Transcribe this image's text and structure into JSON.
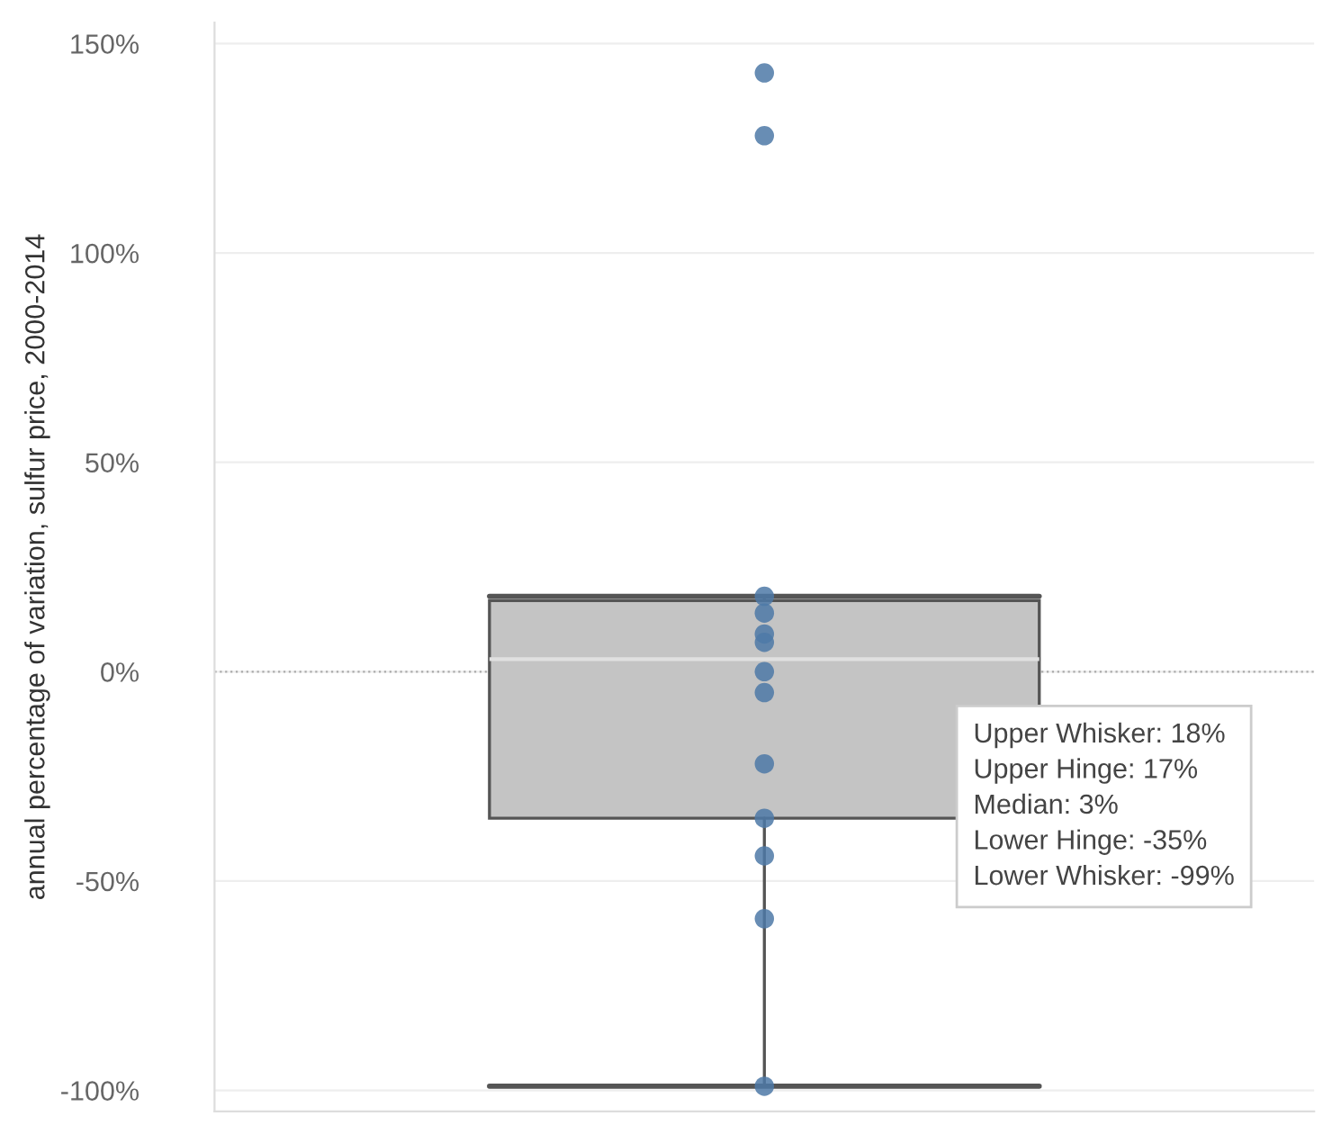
{
  "chart_data": {
    "type": "box",
    "ylabel": "annual percentage of variation, sulfur price, 2000-2014",
    "categories": [
      null
    ],
    "boxes": [
      {
        "low": -99,
        "q1": -35,
        "median": 3,
        "q3": 17,
        "high": 18
      }
    ],
    "series": [
      {
        "type": "scatter",
        "color": "#4e79a7",
        "x": [
          null,
          null,
          null,
          null,
          null,
          null,
          null,
          null,
          null,
          null,
          null,
          null,
          null
        ],
        "values": [
          143,
          128,
          18,
          14,
          9,
          7,
          0,
          -5,
          -22,
          -35,
          -44,
          -59,
          -99
        ]
      }
    ],
    "ylim": [
      -105,
      155
    ],
    "yticks": [
      {
        "value": -100,
        "label": "-100%"
      },
      {
        "value": -50,
        "label": "-50%"
      },
      {
        "value": 0,
        "label": "0%"
      },
      {
        "value": 50,
        "label": "50%"
      },
      {
        "value": 100,
        "label": "100%"
      },
      {
        "value": 150,
        "label": "150%"
      }
    ],
    "grid": "y",
    "ref_lines": [
      {
        "axis": "y",
        "value": 0,
        "color": "#aaaaaa",
        "line_style": "dotted"
      }
    ],
    "annotations": [
      "Upper Whisker: 18%",
      "Upper Hinge: 17%",
      "Median: 3%",
      "Lower Hinge: -35%",
      "Lower Whisker: -99%"
    ]
  }
}
